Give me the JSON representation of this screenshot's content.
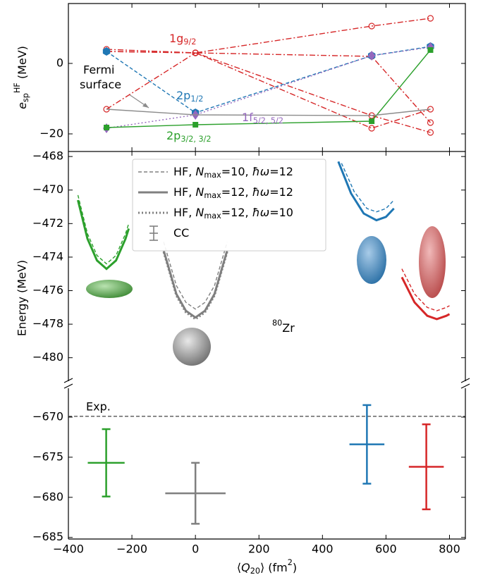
{
  "chart_data": [
    {
      "type": "line",
      "ylabel": [
        "e",
        "sp",
        "HF",
        " (MeV)"
      ],
      "xlim": [
        -400,
        850
      ],
      "xticks": [
        {
          "value": -400,
          "label": "−400"
        },
        {
          "value": -200,
          "label": "−200"
        },
        0,
        200,
        400,
        600,
        800
      ],
      "ylim": [
        -25,
        17
      ],
      "yticks": [
        0,
        {
          "value": -20,
          "label": "−20"
        }
      ],
      "series": [
        {
          "color": "#d62728",
          "linestyle": "dashdot",
          "marker": "circle-open",
          "x": [
            -280,
            0,
            555,
            740
          ],
          "values": [
            4,
            3,
            10.6,
            12.8
          ]
        },
        {
          "color": "#d62728",
          "linestyle": "dashdot",
          "marker": "circle-open",
          "x": [
            -280,
            0,
            555,
            740
          ],
          "values": [
            3.4,
            3,
            2,
            -16.8
          ]
        },
        {
          "color": "#d62728",
          "linestyle": "dashdot",
          "marker": "circle-open",
          "x": [
            -280,
            0,
            555,
            740
          ],
          "values": [
            -13,
            3,
            -14.8,
            -19.6
          ]
        },
        {
          "color": "#d62728",
          "linestyle": "dashdot",
          "marker": "circle-open",
          "x": [
            -280,
            0,
            555,
            740
          ],
          "values": [
            3.4,
            3,
            -18.4,
            -13
          ]
        },
        {
          "color": "#1f77b4",
          "linestyle": "dashed",
          "marker": "hexagon",
          "x": [
            -280,
            0,
            555,
            740
          ],
          "values": [
            3.4,
            -14,
            2.2,
            4.8
          ]
        },
        {
          "color": "#9467bd",
          "linestyle": "dotted",
          "marker": "diamond",
          "x": [
            -280,
            0,
            555,
            740
          ],
          "values": [
            -18.4,
            -14.6,
            2.2,
            4.6
          ]
        },
        {
          "color": "#2ca02c",
          "linestyle": "solid",
          "marker": "square",
          "x": [
            -280,
            0,
            555,
            740
          ],
          "values": [
            -18.2,
            -17.4,
            -16.4,
            3.8
          ]
        },
        {
          "color": "#8c8c8c",
          "linestyle": "solid",
          "marker": "none",
          "x": [
            -280,
            0,
            555,
            740
          ],
          "values": [
            -13,
            -14.6,
            -14.8,
            -13
          ]
        }
      ],
      "labels": [
        {
          "parts": [
            "1g",
            "9/2"
          ],
          "color": "#d62728"
        },
        {
          "parts": [
            "2p",
            "1/2"
          ],
          "color": "#1f77b4"
        },
        {
          "parts": [
            "1f",
            "5/2, 5/2"
          ],
          "color": "#9467bd"
        },
        {
          "parts": [
            "2p",
            "3/2, 3/2"
          ],
          "color": "#2ca02c"
        }
      ],
      "annotation": [
        "Fermi",
        "surface"
      ]
    },
    {
      "type": "line",
      "ylabel": "Energy (MeV)",
      "xlim": [
        -400,
        850
      ],
      "xticks": [
        {
          "value": -400,
          "label": "−400"
        },
        {
          "value": -200,
          "label": "−200"
        },
        0,
        200,
        400,
        600,
        800
      ],
      "ylim": [
        -481.4,
        -467.7
      ],
      "yticks": [
        {
          "value": -468,
          "label": "−468"
        },
        {
          "value": -470,
          "label": "−470"
        },
        {
          "value": -472,
          "label": "−472"
        },
        {
          "value": -474,
          "label": "−474"
        },
        {
          "value": -476,
          "label": "−476"
        },
        {
          "value": -478,
          "label": "−478"
        },
        {
          "value": -480,
          "label": "−480"
        }
      ],
      "annotation": [
        "80",
        "Zr"
      ],
      "legend_color": "#808080",
      "legend": [
        {
          "parts": [
            "HF, ",
            "N",
            "max",
            "=10, ",
            "ħω",
            "=12"
          ],
          "linestyle": "dashed"
        },
        {
          "parts": [
            "HF, ",
            "N",
            "max",
            "=12, ",
            "ħω",
            "=12"
          ],
          "linestyle": "solid"
        },
        {
          "parts": [
            "HF, ",
            "N",
            "max",
            "=12, ",
            "ħω",
            "=10"
          ],
          "linestyle": "dotted"
        },
        {
          "parts": [
            "CC"
          ],
          "linestyle": "errorbar"
        }
      ],
      "series": [
        {
          "color": "#2ca02c",
          "linestyle": "solid",
          "x": [
            -370,
            -340,
            -310,
            -280,
            -250,
            -220,
            -210
          ],
          "values": [
            -470.6,
            -472.9,
            -474.2,
            -474.7,
            -474.2,
            -472.9,
            -472.3
          ]
        },
        {
          "color": "#2ca02c",
          "linestyle": "dashed",
          "x": [
            -370,
            -340,
            -310,
            -280,
            -250,
            -220,
            -210
          ],
          "values": [
            -470.3,
            -472.6,
            -473.9,
            -474.4,
            -473.9,
            -472.6,
            -472.0
          ]
        },
        {
          "color": "#7f7f7f",
          "linestyle": "solid",
          "x": [
            -100,
            -60,
            -30,
            0,
            30,
            60,
            100
          ],
          "values": [
            -473.6,
            -476.2,
            -477.2,
            -477.6,
            -477.2,
            -476.2,
            -473.6
          ]
        },
        {
          "color": "#7f7f7f",
          "linestyle": "dashed",
          "x": [
            -100,
            -60,
            -30,
            0,
            30,
            60,
            100
          ],
          "values": [
            -473.1,
            -475.7,
            -476.7,
            -477.1,
            -476.7,
            -475.7,
            -473.1
          ]
        },
        {
          "color": "#7f7f7f",
          "linestyle": "dotted",
          "x": [
            -100,
            -60,
            -30,
            0,
            30,
            60,
            100
          ],
          "values": [
            -473.7,
            -476.3,
            -477.3,
            -477.7,
            -477.3,
            -476.3,
            -473.7
          ]
        },
        {
          "color": "#1f77b4",
          "linestyle": "solid",
          "x": [
            450,
            490,
            530,
            570,
            600,
            625
          ],
          "values": [
            -468.3,
            -470.2,
            -471.4,
            -471.8,
            -471.6,
            -471.1
          ]
        },
        {
          "color": "#1f77b4",
          "linestyle": "dashed",
          "x": [
            460,
            500,
            540,
            570,
            600,
            625
          ],
          "values": [
            -468.4,
            -470.1,
            -471.1,
            -471.3,
            -471.1,
            -470.6
          ]
        },
        {
          "color": "#d62728",
          "linestyle": "solid",
          "x": [
            650,
            690,
            730,
            760,
            790,
            800
          ],
          "values": [
            -475.2,
            -476.7,
            -477.5,
            -477.7,
            -477.5,
            -477.4
          ]
        },
        {
          "color": "#d62728",
          "linestyle": "dashed",
          "x": [
            650,
            690,
            730,
            760,
            790,
            800
          ],
          "values": [
            -474.7,
            -476.2,
            -477.0,
            -477.2,
            -477.0,
            -476.9
          ]
        }
      ]
    },
    {
      "type": "errorbar",
      "xlabel": [
        "⟨",
        "Q",
        "20",
        "⟩ (fm",
        "2",
        ")"
      ],
      "xlim": [
        -400,
        850
      ],
      "xticks": [
        {
          "value": -400,
          "label": "−400"
        },
        {
          "value": -200,
          "label": "−200"
        },
        0,
        200,
        400,
        600,
        800
      ],
      "ylim": [
        -685.2,
        -666.4
      ],
      "yticks": [
        {
          "value": -670,
          "label": "−670"
        },
        {
          "value": -675,
          "label": "−675"
        },
        {
          "value": -680,
          "label": "−680"
        },
        {
          "value": -685,
          "label": "−685"
        }
      ],
      "exp": {
        "label": "Exp.",
        "value": -669.9,
        "color": "#444444"
      },
      "series": [
        {
          "color": "#2ca02c",
          "x": [
            -281
          ],
          "values": [
            -675.7
          ],
          "yerr": [
            4.2
          ],
          "xerr": [
            58
          ]
        },
        {
          "color": "#7f7f7f",
          "x": [
            0
          ],
          "values": [
            -679.5
          ],
          "yerr": [
            3.8
          ],
          "xerr": [
            95
          ]
        },
        {
          "color": "#1f77b4",
          "x": [
            540
          ],
          "values": [
            -673.4
          ],
          "yerr": [
            4.9
          ],
          "xerr": [
            55
          ]
        },
        {
          "color": "#d62728",
          "x": [
            727
          ],
          "values": [
            -676.2
          ],
          "yerr": [
            5.3
          ],
          "xerr": [
            55
          ]
        }
      ]
    }
  ]
}
